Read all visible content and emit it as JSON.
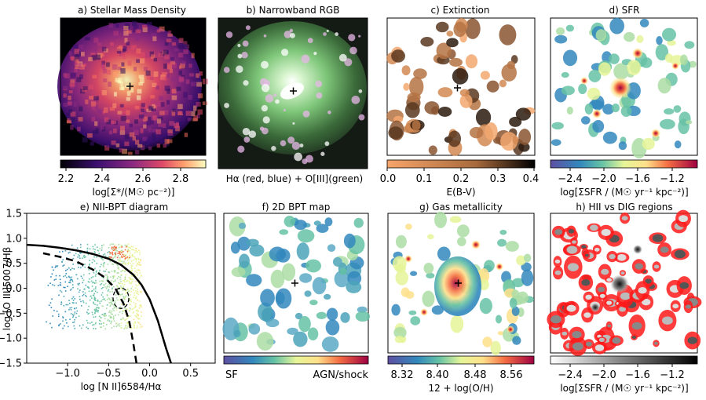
{
  "panels": {
    "a": {
      "title": "a) Stellar Mass Density",
      "cbar_label": "log[Σ*/(M☉ pc⁻²)]",
      "ticks": [
        "2.2",
        "2.4",
        "2.6",
        "2.8"
      ]
    },
    "b": {
      "title": "b) Narrowband RGB",
      "caption": "Hα (red, blue) + O[III](green)"
    },
    "c": {
      "title": "c) Extinction",
      "cbar_label": "E(B-V)",
      "ticks": [
        "0.0",
        "0.1",
        "0.2",
        "0.3",
        "0.4"
      ]
    },
    "d": {
      "title": "d) SFR",
      "cbar_label": "log[ΣSFR / (M☉ yr⁻¹ kpc⁻²)]",
      "ticks": [
        "−2.4",
        "−2.0",
        "−1.6",
        "−1.2"
      ]
    },
    "e": {
      "title": "e) NII-BPT diagram",
      "xlabel": "log [N II]6584/Hα",
      "ylabel": "log [O III]5007/Hβ",
      "xticks": [
        "−1.0",
        "−0.5",
        "0.0",
        "0.5"
      ],
      "yticks": [
        "1.5",
        "1.0",
        "0.5",
        "0.0",
        "−0.5",
        "−1.0",
        "−1.5"
      ]
    },
    "f": {
      "title": "f) 2D BPT map",
      "cbar_left": "SF",
      "cbar_right": "AGN/shock"
    },
    "g": {
      "title": "g) Gas metallicity",
      "cbar_label": "12 + log(O/H)",
      "ticks": [
        "8.32",
        "8.40",
        "8.48",
        "8.56"
      ]
    },
    "h": {
      "title": "h) HII vs DIG regions",
      "cbar_label": "log[ΣSFR / (M☉ yr⁻¹ kpc⁻²)]",
      "ticks": [
        "−2.4",
        "−2.0",
        "−1.6",
        "−1.2"
      ]
    }
  },
  "chart_data": {
    "type": "scatter",
    "title": "e) NII-BPT diagram",
    "xlabel": "log [N II]6584/Hα",
    "ylabel": "log [O III]5007/Hβ",
    "xlim": [
      -1.5,
      0.8
    ],
    "ylim": [
      -1.5,
      1.5
    ],
    "xticks": [
      -1.0,
      -0.5,
      0.0,
      0.5
    ],
    "yticks": [
      -1.5,
      -1.0,
      -0.5,
      0.0,
      0.5,
      1.0,
      1.5
    ],
    "curves": [
      {
        "style": "solid",
        "x": [
          -1.5,
          -1.3,
          -1.1,
          -0.9,
          -0.7,
          -0.5,
          -0.35,
          -0.2,
          -0.1,
          0.0,
          0.1,
          0.2,
          0.26
        ],
        "y": [
          0.87,
          0.85,
          0.81,
          0.76,
          0.69,
          0.59,
          0.47,
          0.27,
          0.07,
          -0.22,
          -0.65,
          -1.2,
          -1.5
        ]
      },
      {
        "style": "dashed",
        "x": [
          -1.3,
          -1.1,
          -0.9,
          -0.7,
          -0.55,
          -0.42,
          -0.32,
          -0.25,
          -0.2,
          -0.16
        ],
        "y": [
          0.7,
          0.63,
          0.54,
          0.38,
          0.22,
          0.0,
          -0.3,
          -0.65,
          -1.1,
          -1.5
        ]
      }
    ],
    "cloud": {
      "x_range": [
        -1.3,
        -0.1
      ],
      "y_range": [
        -0.8,
        0.9
      ]
    },
    "contour": {
      "x": -0.35,
      "y": -0.2
    }
  }
}
